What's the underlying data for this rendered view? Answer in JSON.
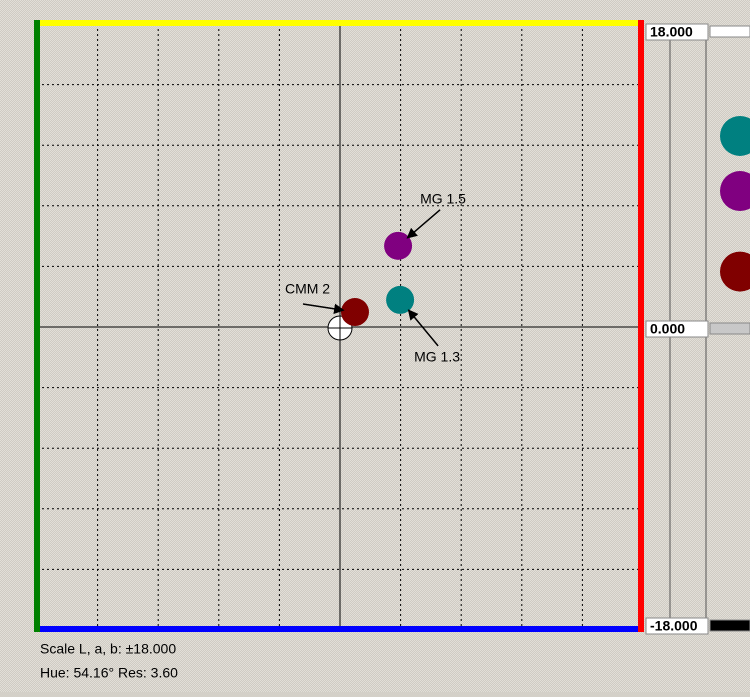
{
  "chart_data": {
    "type": "scatter",
    "xlim": [
      -18,
      18
    ],
    "ylim": [
      -18,
      18
    ],
    "xticks": [
      -14.4,
      -10.8,
      -7.2,
      -3.6,
      0,
      3.6,
      7.2,
      10.8,
      14.4
    ],
    "yticks": [
      -14.4,
      -10.8,
      -7.2,
      -3.6,
      0,
      3.6,
      7.2,
      10.8,
      14.4
    ],
    "grid": true,
    "series": [
      {
        "name": "CMM 2",
        "color": "#800000",
        "x": [
          0.89
        ],
        "values": [
          0.89
        ],
        "L": [
          3.48
        ]
      },
      {
        "name": "MG 1.3",
        "color": "#008080",
        "x": [
          3.57
        ],
        "values": [
          1.61
        ],
        "L": [
          11.7
        ]
      },
      {
        "name": "MG 1.5",
        "color": "#800080",
        "x": [
          3.45
        ],
        "values": [
          4.82
        ],
        "L": [
          8.36
        ]
      }
    ],
    "l_scale": {
      "ylim": [
        -18,
        18
      ],
      "yticks": [
        {
          "value": 18,
          "label": "18.000"
        },
        {
          "value": 0,
          "label": "0.000"
        },
        {
          "value": -18,
          "label": "-18.000"
        }
      ]
    },
    "scale_text": "Scale L, a, b: ±18.000",
    "hue_text": "Hue: 54.16° Res: 3.60"
  }
}
